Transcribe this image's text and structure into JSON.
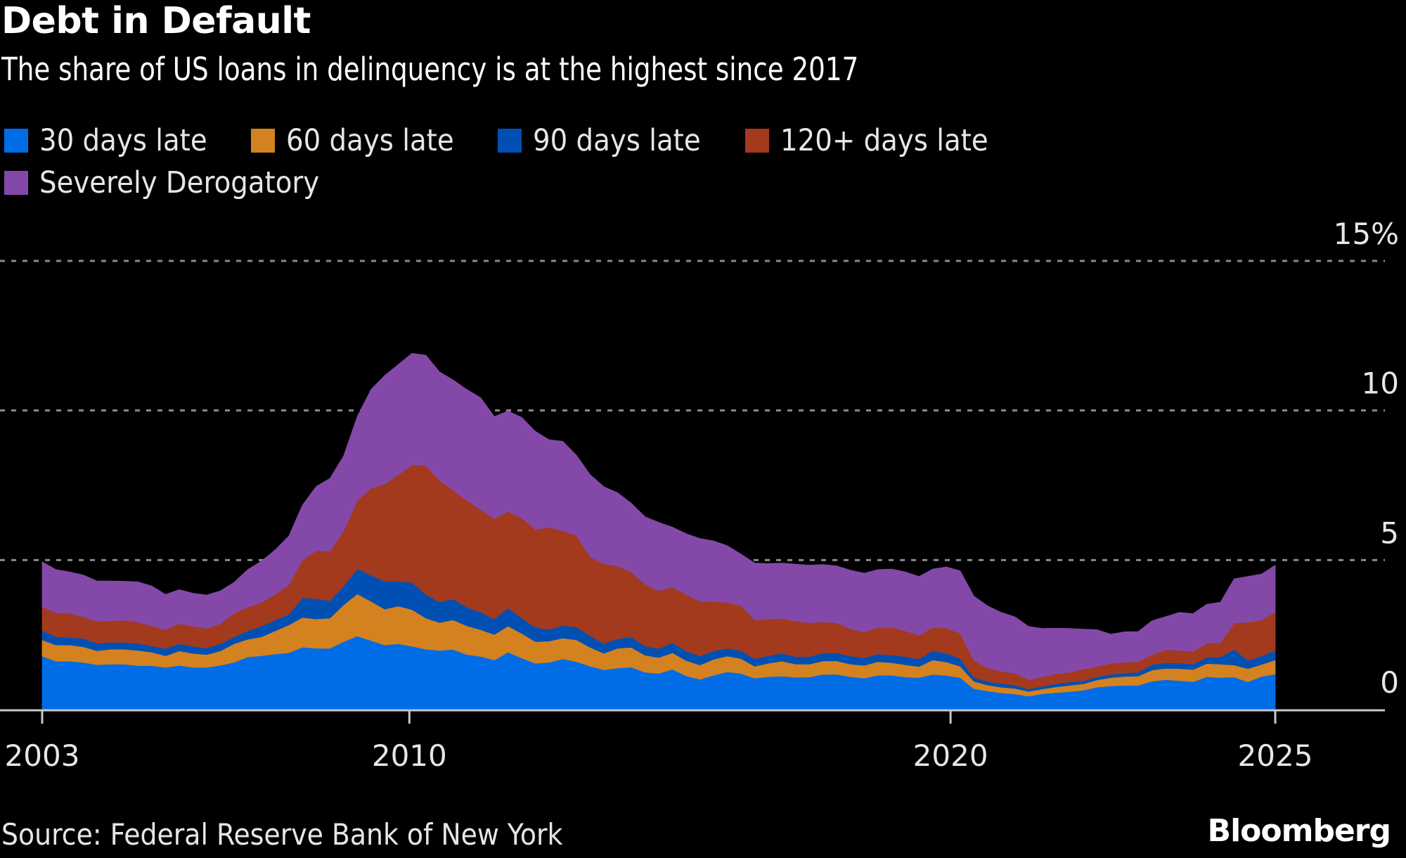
{
  "header": {
    "title": "Debt in Default",
    "subtitle": "The share of US loans in delinquency is at the highest since 2017"
  },
  "legend": [
    {
      "label": "30 days late",
      "color": "#006ce6"
    },
    {
      "label": "60 days late",
      "color": "#d4821f"
    },
    {
      "label": "90 days late",
      "color": "#0050b4"
    },
    {
      "label": "120+ days late",
      "color": "#a33a1e"
    },
    {
      "label": "Severely Derogatory",
      "color": "#8449a8"
    }
  ],
  "footer": {
    "source": "Source: Federal Reserve Bank of New York",
    "brand": "Bloomberg"
  },
  "chart_data": {
    "type": "area",
    "stacked": true,
    "title": "Debt in Default",
    "subtitle": "The share of US loans in delinquency is at the highest since 2017",
    "xlabel": "",
    "ylabel": "",
    "x_start": "2003 Q1",
    "x_frequency": "quarterly",
    "x_ticks": [
      {
        "index": 0,
        "label": "2003"
      },
      {
        "index": 26.8,
        "label": "2010"
      },
      {
        "index": 66.3,
        "label": "2020"
      },
      {
        "index": 90,
        "label": "2025"
      }
    ],
    "y_ticks": [
      {
        "value": 0,
        "label": "0"
      },
      {
        "value": 5,
        "label": "5"
      },
      {
        "value": 10,
        "label": "10"
      },
      {
        "value": 15,
        "label": "15%"
      }
    ],
    "ylim": [
      0,
      15
    ],
    "grid": "horizontal-dashed",
    "legend_position": "top-left",
    "y_axis_side": "right",
    "series": [
      {
        "name": "30 days late",
        "color": "#006ce6",
        "values": [
          1.79,
          1.62,
          1.62,
          1.58,
          1.5,
          1.52,
          1.52,
          1.47,
          1.47,
          1.41,
          1.48,
          1.41,
          1.41,
          1.48,
          1.58,
          1.76,
          1.8,
          1.86,
          1.9,
          2.09,
          2.05,
          2.05,
          2.27,
          2.46,
          2.31,
          2.16,
          2.2,
          2.12,
          2.02,
          1.98,
          2.01,
          1.84,
          1.78,
          1.66,
          1.92,
          1.72,
          1.55,
          1.58,
          1.7,
          1.6,
          1.45,
          1.33,
          1.39,
          1.42,
          1.25,
          1.21,
          1.35,
          1.13,
          1.01,
          1.15,
          1.26,
          1.21,
          1.05,
          1.1,
          1.12,
          1.08,
          1.09,
          1.18,
          1.18,
          1.1,
          1.05,
          1.15,
          1.15,
          1.09,
          1.07,
          1.18,
          1.14,
          1.07,
          0.7,
          0.62,
          0.56,
          0.52,
          0.45,
          0.53,
          0.57,
          0.6,
          0.65,
          0.75,
          0.79,
          0.81,
          0.81,
          0.95,
          1.0,
          0.97,
          0.93,
          1.1,
          1.07,
          1.09,
          0.93,
          1.11,
          1.19
        ]
      },
      {
        "name": "60 days late",
        "color": "#d4821f",
        "values": [
          0.54,
          0.54,
          0.54,
          0.52,
          0.47,
          0.5,
          0.5,
          0.51,
          0.45,
          0.39,
          0.48,
          0.47,
          0.43,
          0.48,
          0.62,
          0.59,
          0.63,
          0.77,
          0.93,
          0.99,
          0.98,
          1.01,
          1.23,
          1.41,
          1.31,
          1.2,
          1.26,
          1.22,
          1.04,
          0.93,
          0.99,
          0.96,
          0.89,
          0.85,
          0.87,
          0.83,
          0.72,
          0.71,
          0.69,
          0.73,
          0.63,
          0.55,
          0.66,
          0.66,
          0.57,
          0.53,
          0.55,
          0.51,
          0.48,
          0.53,
          0.53,
          0.5,
          0.4,
          0.45,
          0.5,
          0.44,
          0.43,
          0.45,
          0.45,
          0.42,
          0.43,
          0.45,
          0.42,
          0.41,
          0.37,
          0.48,
          0.45,
          0.38,
          0.25,
          0.2,
          0.19,
          0.19,
          0.16,
          0.16,
          0.19,
          0.21,
          0.21,
          0.24,
          0.28,
          0.3,
          0.31,
          0.37,
          0.38,
          0.4,
          0.41,
          0.44,
          0.45,
          0.4,
          0.44,
          0.4,
          0.47
        ]
      },
      {
        "name": "90 days late",
        "color": "#0050b4",
        "values": [
          0.32,
          0.27,
          0.25,
          0.28,
          0.25,
          0.23,
          0.23,
          0.23,
          0.21,
          0.24,
          0.24,
          0.24,
          0.22,
          0.24,
          0.23,
          0.28,
          0.36,
          0.36,
          0.35,
          0.66,
          0.67,
          0.58,
          0.63,
          0.84,
          0.87,
          0.93,
          0.83,
          0.91,
          0.79,
          0.69,
          0.7,
          0.62,
          0.59,
          0.52,
          0.61,
          0.51,
          0.48,
          0.4,
          0.42,
          0.43,
          0.39,
          0.33,
          0.32,
          0.35,
          0.3,
          0.3,
          0.34,
          0.32,
          0.3,
          0.28,
          0.26,
          0.26,
          0.25,
          0.25,
          0.26,
          0.25,
          0.25,
          0.27,
          0.26,
          0.27,
          0.25,
          0.26,
          0.25,
          0.27,
          0.26,
          0.31,
          0.29,
          0.26,
          0.13,
          0.12,
          0.12,
          0.11,
          0.08,
          0.09,
          0.11,
          0.11,
          0.1,
          0.11,
          0.11,
          0.11,
          0.13,
          0.18,
          0.18,
          0.19,
          0.18,
          0.21,
          0.24,
          0.53,
          0.27,
          0.28,
          0.32
        ]
      },
      {
        "name": "120+ days late",
        "color": "#a33a1e",
        "values": [
          0.79,
          0.81,
          0.81,
          0.72,
          0.73,
          0.72,
          0.74,
          0.71,
          0.67,
          0.63,
          0.67,
          0.67,
          0.65,
          0.67,
          0.79,
          0.79,
          0.79,
          0.86,
          0.99,
          1.26,
          1.61,
          1.65,
          1.85,
          2.28,
          2.91,
          3.25,
          3.56,
          3.93,
          4.31,
          4.06,
          3.64,
          3.57,
          3.42,
          3.35,
          3.22,
          3.35,
          3.27,
          3.4,
          3.17,
          3.06,
          2.63,
          2.67,
          2.43,
          2.17,
          2.08,
          1.93,
          1.85,
          1.89,
          1.83,
          1.66,
          1.53,
          1.51,
          1.3,
          1.22,
          1.17,
          1.19,
          1.13,
          1.03,
          1.01,
          0.91,
          0.87,
          0.88,
          0.93,
          0.86,
          0.78,
          0.78,
          0.85,
          0.84,
          0.57,
          0.45,
          0.41,
          0.4,
          0.31,
          0.31,
          0.33,
          0.33,
          0.4,
          0.34,
          0.36,
          0.36,
          0.35,
          0.33,
          0.44,
          0.42,
          0.42,
          0.47,
          0.48,
          0.87,
          1.28,
          1.2,
          1.28
        ]
      },
      {
        "name": "Severely Derogatory",
        "color": "#8449a8",
        "values": [
          1.5,
          1.44,
          1.38,
          1.4,
          1.35,
          1.33,
          1.3,
          1.35,
          1.33,
          1.18,
          1.14,
          1.1,
          1.12,
          1.1,
          1.03,
          1.26,
          1.38,
          1.49,
          1.63,
          1.84,
          2.15,
          2.44,
          2.5,
          2.81,
          3.3,
          3.63,
          3.69,
          3.73,
          3.69,
          3.63,
          3.68,
          3.71,
          3.75,
          3.42,
          3.36,
          3.36,
          3.28,
          2.93,
          2.99,
          2.68,
          2.75,
          2.57,
          2.45,
          2.3,
          2.25,
          2.29,
          2.01,
          2.03,
          2.1,
          2.02,
          1.9,
          1.72,
          1.9,
          1.86,
          1.85,
          1.9,
          1.93,
          1.92,
          1.9,
          1.96,
          1.96,
          1.94,
          1.95,
          1.97,
          1.97,
          1.95,
          2.04,
          2.09,
          2.15,
          2.08,
          1.97,
          1.88,
          1.78,
          1.62,
          1.52,
          1.46,
          1.33,
          1.23,
          0.98,
          1.02,
          1.01,
          1.14,
          1.11,
          1.27,
          1.27,
          1.3,
          1.35,
          1.48,
          1.53,
          1.54,
          1.57
        ]
      }
    ]
  }
}
